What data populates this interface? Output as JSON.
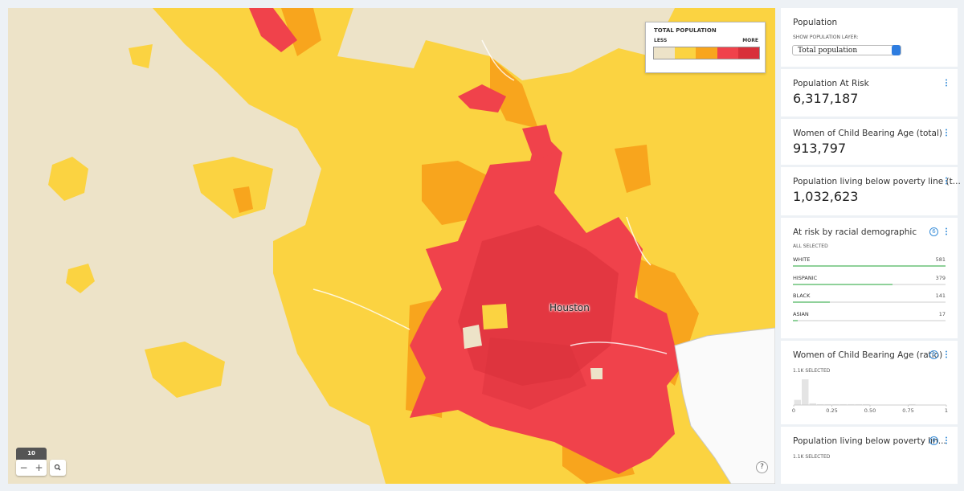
{
  "map": {
    "legend": {
      "title": "TOTAL POPULATION",
      "low": "LESS",
      "high": "MORE",
      "colors": [
        "#ede3c8",
        "#fbd341",
        "#f8a51d",
        "#f0424b",
        "#d8303a"
      ]
    },
    "city_label": "Houston",
    "zoom": {
      "level": 10,
      "out": "−",
      "in": "+"
    },
    "help": "?"
  },
  "sidebar": {
    "population": {
      "title": "Population",
      "layer_label": "SHOW POPULATION LAYER:",
      "layer_value": "Total population"
    },
    "at_risk": {
      "title": "Population At Risk",
      "value": "6,317,187"
    },
    "women_total": {
      "title": "Women of Child Bearing Age (total)",
      "value": "913,797"
    },
    "poverty_total": {
      "title": "Population living below poverty line (t...",
      "value": "1,032,623"
    },
    "racial": {
      "title": "At risk by racial demographic",
      "badge": 6,
      "status": "ALL SELECTED",
      "categories": [
        "WHITE",
        "HISPANIC",
        "BLACK",
        "ASIAN"
      ],
      "values": [
        581,
        379,
        141,
        17
      ],
      "color": "#8fd19a"
    },
    "women_ratio": {
      "title": "Women of Child Bearing Age (ratio)",
      "badge": 6,
      "status": "1.1K SELECTED",
      "bins": [
        0,
        0.05,
        0.1,
        0.15,
        0.2,
        0.25,
        0.3,
        0.35,
        0.4,
        0.45,
        0.5,
        0.55,
        0.6,
        0.65,
        0.7,
        0.75,
        0.8,
        0.85,
        0.9,
        0.95,
        1
      ],
      "values": [
        6,
        30,
        2,
        1,
        1,
        1,
        1,
        1,
        1,
        1,
        0,
        0,
        0,
        0,
        0,
        1,
        0,
        0,
        0,
        0
      ],
      "xlim": [
        0,
        1
      ],
      "xticks": [
        0,
        0.25,
        {
          "value": 0.5,
          "label": "0.50"
        },
        0.75,
        1
      ],
      "color": "#e4e4e4"
    },
    "poverty_ratio": {
      "title": "Population living below poverty lin...",
      "badge": 6,
      "status": "1.1K SELECTED"
    }
  }
}
